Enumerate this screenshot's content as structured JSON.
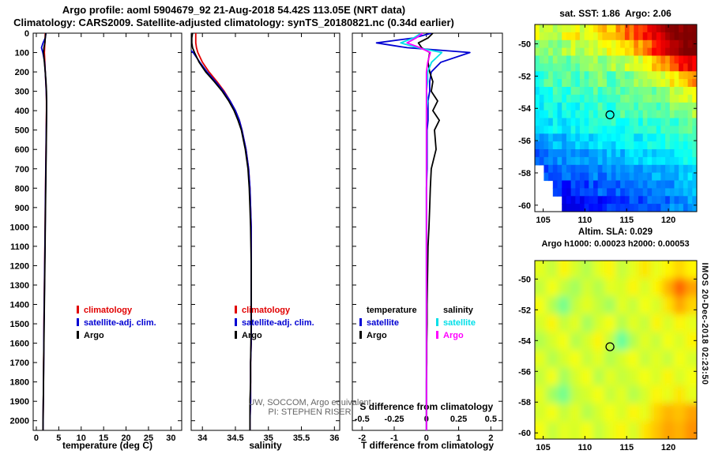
{
  "header": {
    "title1": "Argo profile: aoml 5904679_92 21-Aug-2018 54.42S 113.05E (NRT data)",
    "title2": "Climatology: CARS2009. Satellite-adjusted climatology: synTS_20180821.nc (0.34d earlier)"
  },
  "credits": {
    "line1": "UW, SOCCOM, Argo equivalent",
    "line2": "PI: STEPHEN RISER"
  },
  "watermark": "IMOS 20-Dec-2018 02:23:50",
  "colors": {
    "climatology": "#e10000",
    "satellite": "#0000d2",
    "argo": "#000000",
    "salinity_satellite": "#00dfe8",
    "salinity_argo": "#ff00ff"
  },
  "chart_data": [
    {
      "id": "temperature_profile",
      "type": "line",
      "xlabel": "temperature (deg C)",
      "xlim": [
        -0.7,
        32.4
      ],
      "ylim": [
        0,
        2050
      ],
      "xticks": [
        0,
        5,
        10,
        15,
        20,
        25,
        30
      ],
      "yticks": [
        0,
        100,
        200,
        300,
        400,
        500,
        600,
        700,
        800,
        900,
        1000,
        1100,
        1200,
        1300,
        1400,
        1500,
        1600,
        1700,
        1800,
        1900,
        2000
      ],
      "depths": [
        0,
        25,
        50,
        75,
        100,
        150,
        200,
        250,
        300,
        350,
        400,
        450,
        500,
        600,
        700,
        800,
        900,
        1000,
        1100,
        1200,
        1300,
        1400,
        1500,
        1600,
        1700,
        1800,
        1900,
        2000,
        2060
      ],
      "series": [
        {
          "name": "climatology",
          "color_key": "climatology",
          "values": [
            2.0,
            1.95,
            1.9,
            1.85,
            1.8,
            1.9,
            2.0,
            2.1,
            2.2,
            2.25,
            2.25,
            2.22,
            2.2,
            2.15,
            2.1,
            2.05,
            2.0,
            1.95,
            1.9,
            1.85,
            1.8,
            1.75,
            1.7,
            1.67,
            1.63,
            1.6,
            1.55,
            1.52,
            1.5
          ]
        },
        {
          "name": "satellite-adj. clim.",
          "color_key": "satellite",
          "values": [
            2.15,
            2.0,
            1.5,
            1.15,
            1.45,
            1.85,
            2.0,
            2.12,
            2.22,
            2.28,
            2.28,
            2.25,
            2.22,
            2.17,
            2.12,
            2.07,
            2.02,
            1.97,
            1.92,
            1.87,
            1.82,
            1.77,
            1.72,
            1.68,
            1.64,
            1.6,
            1.56,
            1.51,
            1.49
          ]
        },
        {
          "name": "Argo",
          "color_key": "argo",
          "values": [
            2.1,
            2.0,
            1.9,
            1.7,
            1.6,
            1.8,
            2.0,
            2.15,
            2.25,
            2.3,
            2.3,
            2.28,
            2.25,
            2.2,
            2.15,
            2.1,
            2.05,
            2.0,
            1.95,
            1.9,
            1.85,
            1.8,
            1.75,
            1.7,
            1.65,
            1.6,
            1.55,
            1.5,
            1.48
          ]
        }
      ],
      "legend": [
        {
          "label": "climatology",
          "color_key": "climatology"
        },
        {
          "label": "satellite-adj. clim.",
          "color_key": "satellite"
        },
        {
          "label": "Argo",
          "color_key": "argo"
        }
      ]
    },
    {
      "id": "salinity_profile",
      "type": "line",
      "xlabel": "salinity",
      "xlim": [
        33.83,
        36.08
      ],
      "ylim": [
        0,
        2050
      ],
      "xticks": [
        34,
        34.5,
        35,
        35.5,
        36
      ],
      "yticks": [
        0,
        100,
        200,
        300,
        400,
        500,
        600,
        700,
        800,
        900,
        1000,
        1100,
        1200,
        1300,
        1400,
        1500,
        1600,
        1700,
        1800,
        1900,
        2000
      ],
      "depths": [
        0,
        25,
        50,
        75,
        100,
        150,
        200,
        250,
        300,
        350,
        400,
        450,
        500,
        600,
        700,
        800,
        900,
        1000,
        1100,
        1200,
        1300,
        1400,
        1500,
        1600,
        1700,
        1800,
        1900,
        2000,
        2060
      ],
      "series": [
        {
          "name": "climatology",
          "color_key": "climatology",
          "values": [
            33.9,
            33.9,
            33.9,
            33.91,
            33.93,
            34.0,
            34.1,
            34.22,
            34.33,
            34.42,
            34.5,
            34.56,
            34.6,
            34.66,
            34.7,
            34.72,
            34.73,
            34.74,
            34.74,
            34.74,
            34.74,
            34.74,
            34.74,
            34.74,
            34.73,
            34.73,
            34.73,
            34.72,
            34.72
          ]
        },
        {
          "name": "satellite-adj. clim.",
          "color_key": "satellite",
          "values": [
            33.82,
            33.76,
            33.7,
            33.78,
            33.86,
            33.96,
            34.07,
            34.2,
            34.32,
            34.42,
            34.5,
            34.56,
            34.6,
            34.66,
            34.7,
            34.72,
            34.73,
            34.74,
            34.74,
            34.74,
            34.74,
            34.74,
            34.74,
            34.74,
            34.73,
            34.73,
            34.73,
            34.72,
            34.72
          ]
        },
        {
          "name": "Argo",
          "color_key": "argo",
          "values": [
            33.85,
            33.84,
            33.84,
            33.85,
            33.88,
            33.95,
            34.05,
            34.18,
            34.3,
            34.4,
            34.48,
            34.54,
            34.59,
            34.65,
            34.69,
            34.71,
            34.72,
            34.73,
            34.735,
            34.74,
            34.74,
            34.74,
            34.74,
            34.735,
            34.73,
            34.73,
            34.72,
            34.72,
            34.72
          ]
        }
      ],
      "legend": [
        {
          "label": "climatology",
          "color_key": "climatology"
        },
        {
          "label": "satellite-adj. clim.",
          "color_key": "satellite"
        },
        {
          "label": "Argo",
          "color_key": "argo"
        }
      ]
    },
    {
      "id": "difference_profile",
      "type": "line",
      "xlabel": "T difference from climatology",
      "xlim": [
        -2.3,
        2.36
      ],
      "ylim": [
        0,
        2050
      ],
      "xticks": [
        -2,
        -1,
        0,
        1,
        2
      ],
      "yticks": [
        0,
        100,
        200,
        300,
        400,
        500,
        600,
        700,
        800,
        900,
        1000,
        1100,
        1200,
        1300,
        1400,
        1500,
        1600,
        1700,
        1800,
        1900,
        2000
      ],
      "inner_axis": {
        "label": "S difference from climatology",
        "tick_labels": [
          "-0.5",
          "-0.25",
          "0",
          "0.25",
          "0.5"
        ],
        "tick_positions": [
          -2,
          -1,
          0,
          1,
          2
        ]
      },
      "depths": [
        0,
        25,
        50,
        75,
        100,
        150,
        200,
        250,
        300,
        350,
        400,
        450,
        500,
        600,
        700,
        800,
        900,
        1000,
        1100,
        1200,
        1300,
        1400,
        1500,
        1600,
        1700,
        1800,
        1900,
        2000,
        2060
      ],
      "series": [
        {
          "name": "T satellite",
          "color_key": "satellite",
          "values": [
            0.15,
            -0.4,
            -1.55,
            -0.6,
            1.35,
            0.45,
            0.15,
            0.1,
            0.1,
            0.05,
            0.05,
            0.05,
            0.02,
            0.02,
            0.02,
            0.0,
            0.0,
            0.0,
            0.0,
            0.0,
            0.0,
            0.0,
            0.0,
            0.0,
            0.0,
            0.0,
            0.0,
            0.0,
            0.0
          ]
        },
        {
          "name": "T Argo",
          "color_key": "argo",
          "values": [
            0.2,
            0.05,
            -0.25,
            -0.15,
            0.1,
            0.05,
            0.1,
            0.2,
            0.15,
            0.35,
            0.2,
            0.4,
            0.25,
            0.3,
            0.15,
            0.12,
            0.1,
            0.08,
            0.05,
            0.04,
            0.03,
            0.02,
            0.02,
            0.01,
            0.01,
            0.0,
            0.0,
            0.0,
            0.0
          ]
        },
        {
          "name": "S satellite",
          "color_key": "salinity_satellite",
          "x_scale": 4,
          "values": [
            -0.04,
            -0.1,
            -0.2,
            -0.07,
            0.12,
            0.04,
            0.01,
            0.01,
            0.0,
            0.01,
            0.0,
            0.0,
            0.0,
            0.0,
            0.0,
            0.0,
            0.0,
            0.0,
            0.0,
            0.0,
            0.0,
            0.0,
            0.0,
            0.0,
            0.0,
            0.0,
            0.0,
            0.0,
            0.0
          ]
        },
        {
          "name": "S Argo",
          "color_key": "salinity_argo",
          "x_scale": 4,
          "values": [
            -0.03,
            -0.08,
            -0.15,
            -0.05,
            0.03,
            0.01,
            0.0,
            0.0,
            0.0,
            0.0,
            0.0,
            0.0,
            0.0,
            0.0,
            0.0,
            0.0,
            0.0,
            0.0,
            0.0,
            0.0,
            0.0,
            0.0,
            0.0,
            0.0,
            0.0,
            0.0,
            0.0,
            0.0,
            0.0
          ]
        }
      ],
      "legend_columns": [
        {
          "header": "temperature",
          "items": [
            {
              "label": "satellite",
              "color_key": "satellite"
            },
            {
              "label": "Argo",
              "color_key": "argo"
            }
          ]
        },
        {
          "header": "salinity",
          "items": [
            {
              "label": "satellite",
              "color_key": "salinity_satellite"
            },
            {
              "label": "Argo",
              "color_key": "salinity_argo"
            }
          ]
        }
      ]
    },
    {
      "id": "sst_map",
      "type": "heatmap",
      "title": "sat. SST: 1.86  Argo: 2.06",
      "colormap": "jet",
      "lon_range": [
        104,
        123.4
      ],
      "lat_range": [
        -60.4,
        -48.8
      ],
      "xticks": [
        105,
        110,
        115,
        120
      ],
      "yticks": [
        -50,
        -52,
        -54,
        -56,
        -58,
        -60
      ],
      "value_range": [
        0,
        11
      ],
      "marker": {
        "lon": 113,
        "lat": -54.4
      },
      "grid": [
        [
          6.5,
          6,
          6.2,
          6.8,
          7,
          6.5,
          7,
          7.5,
          7.5,
          8,
          8.5,
          9,
          9.5,
          10,
          10.5,
          11,
          11,
          11
        ],
        [
          5.5,
          5.8,
          5.5,
          6,
          6.2,
          6,
          6.3,
          6.5,
          6.8,
          7,
          7.5,
          8,
          8.5,
          9.5,
          10,
          10.5,
          11,
          11
        ],
        [
          5,
          5.2,
          5.5,
          5,
          5.3,
          5.5,
          5.8,
          5.5,
          6,
          6,
          6.3,
          6.5,
          7,
          7.5,
          8,
          9,
          9.5,
          10
        ],
        [
          4.5,
          5,
          4.8,
          5.2,
          4.8,
          5,
          5.2,
          5.5,
          5,
          5.5,
          5.3,
          5.8,
          6,
          6.2,
          6.5,
          7,
          7.5,
          8
        ],
        [
          4.2,
          4.5,
          4.8,
          4.4,
          5,
          4.6,
          5,
          4.8,
          5.2,
          5,
          5.4,
          5,
          5.5,
          5.2,
          5.8,
          6,
          6.2,
          6.5
        ],
        [
          4,
          4.2,
          4,
          4.5,
          4.3,
          4.6,
          4.4,
          4.8,
          4.5,
          5,
          4.8,
          5,
          5.2,
          5,
          5.3,
          5.5,
          5.5,
          6
        ],
        [
          3.5,
          3.8,
          4,
          3.8,
          4.2,
          4,
          4.3,
          4.2,
          4.5,
          4.3,
          4.6,
          4.5,
          4.8,
          4.6,
          5,
          4.8,
          5.2,
          5.3
        ],
        [
          3,
          3.2,
          3.5,
          3.3,
          3.6,
          3.8,
          3.6,
          4,
          3.8,
          4,
          4.2,
          4,
          4.3,
          4.2,
          4.5,
          4.4,
          4.6,
          4.8
        ],
        [
          2.5,
          2.8,
          3,
          2.8,
          3.2,
          3,
          3.3,
          3.2,
          3.5,
          3.4,
          3.6,
          3.5,
          3.8,
          3.6,
          4,
          3.8,
          4.2,
          4.3
        ],
        [
          null,
          2.2,
          2,
          2.5,
          2.4,
          2.6,
          2.8,
          2.6,
          3,
          2.8,
          3,
          3.2,
          3,
          3.3,
          3.4,
          3.5,
          3.6,
          3.8
        ],
        [
          null,
          null,
          1.8,
          1.6,
          2,
          2,
          2.2,
          2.4,
          2.2,
          2.5,
          2.6,
          2.5,
          2.8,
          2.8,
          3,
          3,
          3.2,
          3.4
        ],
        [
          null,
          null,
          null,
          1.2,
          1.5,
          1.4,
          1.8,
          1.6,
          2,
          2,
          2.2,
          2,
          2.4,
          2.5,
          2.4,
          2.8,
          2.8,
          3
        ]
      ]
    },
    {
      "id": "sla_map",
      "type": "heatmap",
      "title1": "Altim. SLA: 0.029",
      "title2": "Argo h1000: 0.00023 h2000: 0.00053",
      "colormap": "jet",
      "lon_range": [
        104,
        123.4
      ],
      "lat_range": [
        -60.4,
        -48.8
      ],
      "xticks": [
        105,
        110,
        115,
        120
      ],
      "yticks": [
        -50,
        -52,
        -54,
        -56,
        -58,
        -60
      ],
      "value_range": [
        -0.3,
        0.3
      ],
      "marker": {
        "lon": 113,
        "lat": -54.4
      },
      "grid": [
        [
          0.06,
          0.04,
          0.08,
          0.05,
          0.03,
          0.06,
          0.08,
          0.04,
          0.06,
          0.09,
          0.06,
          0.08,
          0.1,
          0.08
        ],
        [
          0.04,
          0.07,
          0.04,
          0.02,
          0.05,
          0.03,
          0.06,
          0.05,
          0.08,
          0.05,
          0.08,
          0.12,
          0.17,
          0.13
        ],
        [
          0.07,
          0.03,
          -0.01,
          0.04,
          0.06,
          0.04,
          0.02,
          0.06,
          0.04,
          0.07,
          0.05,
          0.09,
          0.13,
          0.1
        ],
        [
          0.05,
          0.08,
          0.04,
          0.06,
          0.02,
          0.05,
          0.07,
          0.03,
          0.06,
          0.04,
          0.08,
          0.05,
          0.08,
          0.06
        ],
        [
          0.03,
          0.05,
          0.07,
          0.03,
          0.05,
          0.08,
          0.04,
          -0.02,
          0.03,
          0.06,
          0.04,
          0.07,
          0.05,
          0.08
        ],
        [
          0.06,
          0.03,
          0.05,
          0.07,
          0.04,
          0.06,
          0.03,
          0.05,
          0.07,
          0.04,
          0.06,
          0.04,
          0.07,
          0.05
        ],
        [
          0.04,
          0.07,
          0.02,
          0.05,
          0.07,
          0.03,
          0.06,
          0.04,
          0.05,
          0.07,
          0.05,
          0.08,
          0.05,
          0.07
        ],
        [
          0.06,
          0.02,
          -0.01,
          0.04,
          0.05,
          0.07,
          0.04,
          0.06,
          0.03,
          0.05,
          0.08,
          0.06,
          0.09,
          0.06
        ],
        [
          0.05,
          0.07,
          0.04,
          0.06,
          0.03,
          0.05,
          0.07,
          0.05,
          0.08,
          0.06,
          0.1,
          0.12,
          0.11,
          0.13
        ],
        [
          0.07,
          0.04,
          0.06,
          0.05,
          0.07,
          0.04,
          0.06,
          0.08,
          0.05,
          0.09,
          0.11,
          0.13,
          0.12,
          0.14
        ]
      ]
    }
  ]
}
